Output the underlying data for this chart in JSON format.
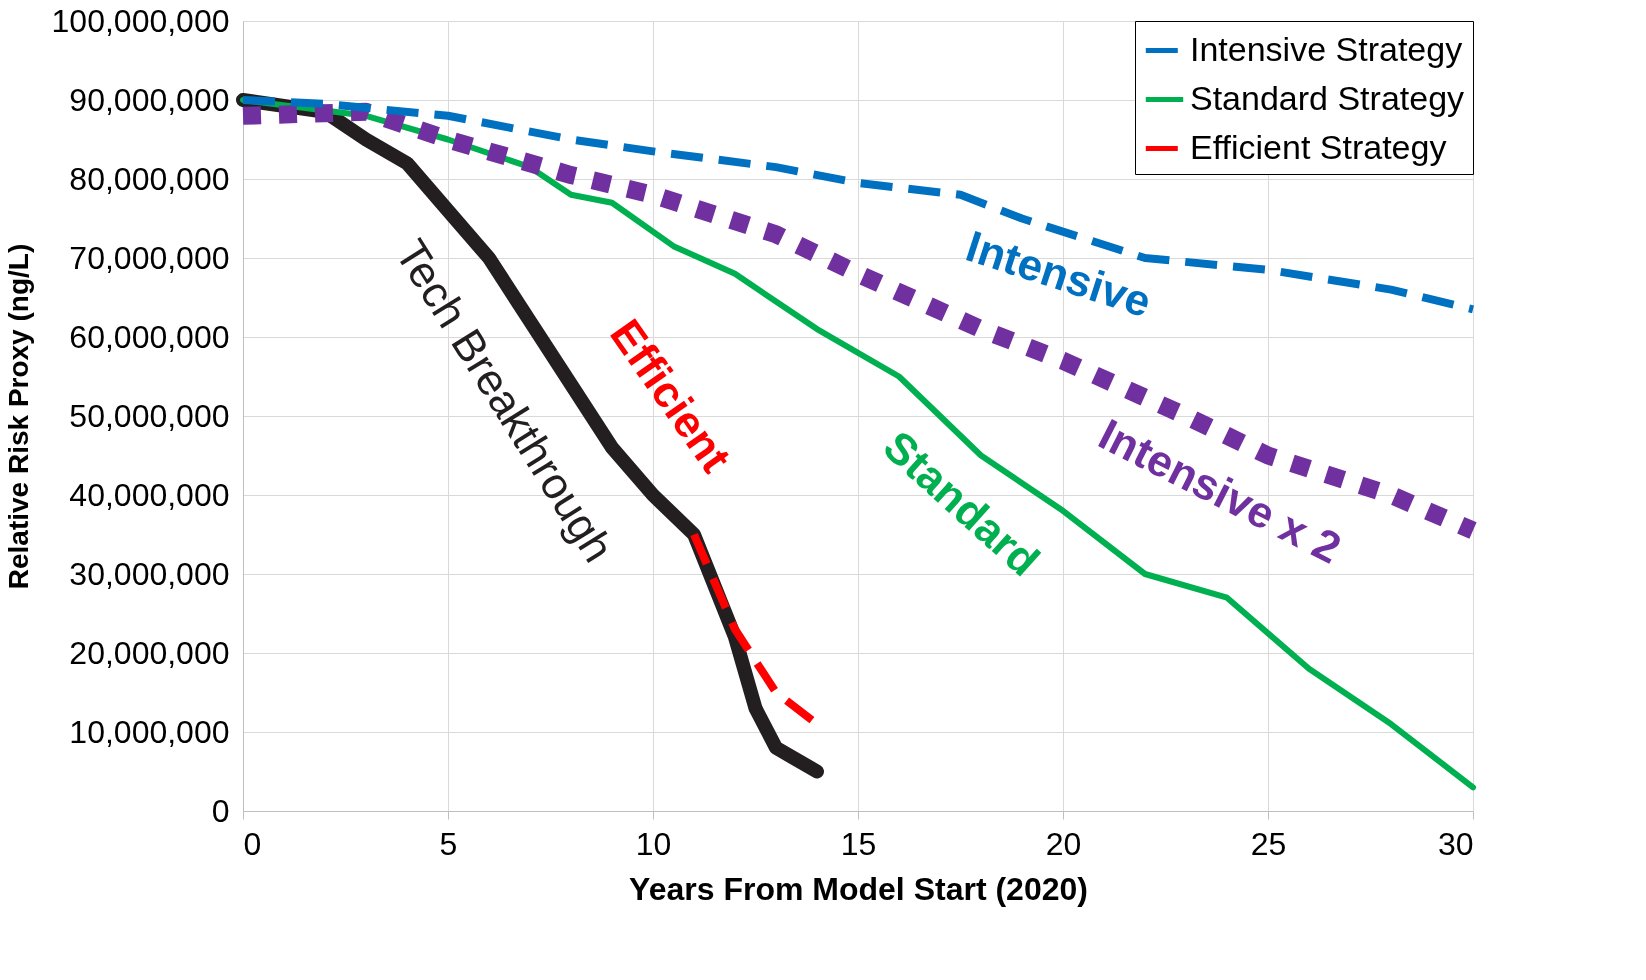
{
  "chart_data": {
    "type": "line",
    "xlabel": "Years From Model Start (2020)",
    "ylabel": "Relative Risk Proxy (ng/L)",
    "xlim": [
      0,
      30
    ],
    "xticks": [
      0,
      5,
      10,
      15,
      20,
      25,
      30
    ],
    "ylim": [
      0,
      100000000
    ],
    "yticks": [
      0,
      {
        "value": 10000000,
        "label": "10,000,000"
      },
      {
        "value": 20000000,
        "label": "20,000,000"
      },
      {
        "value": 30000000,
        "label": "30,000,000"
      },
      {
        "value": 40000000,
        "label": "40,000,000"
      },
      {
        "value": 50000000,
        "label": "50,000,000"
      },
      {
        "value": 60000000,
        "label": "60,000,000"
      },
      {
        "value": 70000000,
        "label": "70,000,000"
      },
      {
        "value": 80000000,
        "label": "80,000,000"
      },
      {
        "value": 90000000,
        "label": "90,000,000"
      },
      {
        "value": 100000000,
        "label": "100,000,000"
      }
    ],
    "grid": true,
    "legend": "top right",
    "marker": "none",
    "series": [
      {
        "name": "Intensive Strategy",
        "color": "#0070c0",
        "line_style": "dashed",
        "x": [
          0,
          2,
          5,
          8,
          10,
          13,
          15,
          17.5,
          19,
          22,
          25,
          28,
          30
        ],
        "values": [
          90000000,
          89500000,
          88000000,
          85000000,
          83500000,
          81500000,
          79500000,
          78000000,
          75000000,
          70000000,
          68500000,
          66000000,
          63500000
        ]
      },
      {
        "name": "Standard Strategy",
        "color": "#00b050",
        "line_style": "solid",
        "x": [
          0,
          3,
          5,
          7,
          8,
          9,
          10.5,
          12,
          14,
          16,
          17,
          18,
          20,
          22,
          24,
          26,
          28,
          30
        ],
        "values": [
          90000000,
          88000000,
          85000000,
          81500000,
          78000000,
          77000000,
          71500000,
          68000000,
          61000000,
          55000000,
          50000000,
          45000000,
          38000000,
          30000000,
          27000000,
          18000000,
          11000000,
          3000000
        ]
      },
      {
        "name": "Efficient Strategy",
        "color": "#ff0000",
        "line_style": "dashed",
        "x": [
          11,
          12,
          13,
          14
        ],
        "values": [
          35000000,
          23000000,
          15000000,
          11000000
        ]
      },
      {
        "color": "#7030a0",
        "line_style": "dotted",
        "x": [
          0,
          3,
          5,
          8,
          10,
          13,
          15,
          18,
          20,
          23,
          25,
          28,
          30
        ],
        "values": [
          88000000,
          88500000,
          85000000,
          80500000,
          78000000,
          73000000,
          68000000,
          61000000,
          57000000,
          50000000,
          45000000,
          40000000,
          35500000
        ]
      },
      {
        "color": "#231f20",
        "line_style": "solid",
        "x": [
          0,
          2,
          3,
          4,
          5,
          6,
          7,
          8,
          9,
          10,
          11,
          12,
          12.5,
          13,
          14
        ],
        "values": [
          90000000,
          88500000,
          85000000,
          82000000,
          76000000,
          70000000,
          62000000,
          54000000,
          46000000,
          40000000,
          35000000,
          22000000,
          13000000,
          8000000,
          5000000
        ]
      }
    ],
    "annotations": [
      "Intensive",
      "Standard",
      "Efficient",
      "Tech Breakthrough",
      "Intensive x 2"
    ]
  }
}
